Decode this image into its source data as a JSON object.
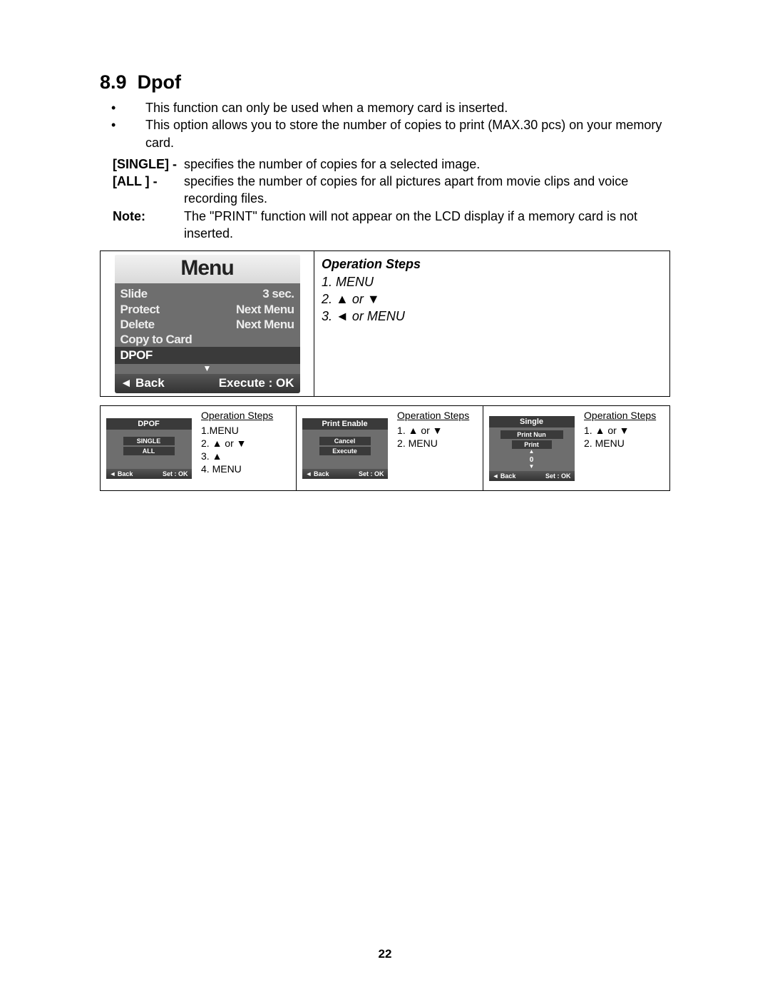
{
  "section": {
    "number": "8.9",
    "title": "Dpof"
  },
  "bullets": [
    "This function can only be used when a memory card is inserted.",
    "This option allows you to store the number of copies to print (MAX.30 pcs) on your memory card."
  ],
  "defs": [
    {
      "label": "[SINGLE] -",
      "text": "specifies the number of copies for a selected image."
    },
    {
      "label": "[ALL ]   -",
      "text": "specifies the number of copies for all pictures apart from movie clips and voice recording files."
    },
    {
      "label": "Note:",
      "text": "The \"PRINT\" function will not appear on the LCD display if a memory card is not inserted."
    }
  ],
  "main_menu": {
    "header": "Menu",
    "rows": [
      {
        "l": "Slide",
        "r": "3 sec."
      },
      {
        "l": "Protect",
        "r": "Next Menu"
      },
      {
        "l": "Delete",
        "r": "Next Menu"
      },
      {
        "l": "Copy to Card",
        "r": ""
      }
    ],
    "selected": "DPOF",
    "footer_back": "◄ Back",
    "footer_exec": "Execute : OK"
  },
  "main_ops": {
    "title": "Operation Steps",
    "lines": [
      "1. MENU",
      "2. ▲ or ▼",
      "3. ◄ or MENU"
    ]
  },
  "panels": [
    {
      "screen": {
        "header": "DPOF",
        "items": [
          "SINGLE",
          "ALL"
        ],
        "footer_l": "◄ Back",
        "footer_r": "Set : OK"
      },
      "ops": {
        "t": "Operation Steps",
        "lines": [
          "1.MENU",
          "2. ▲ or ▼",
          "3. ▲",
          "4. MENU"
        ]
      }
    },
    {
      "screen": {
        "header": "Print Enable",
        "items": [
          "Cancel",
          "Execute"
        ],
        "footer_l": "◄ Back",
        "footer_r": "Set : OK"
      },
      "ops": {
        "t": "Operation Steps",
        "lines": [
          "1. ▲ or ▼",
          "2. MENU"
        ]
      }
    },
    {
      "screen": {
        "header": "Single",
        "items_special": {
          "top": "Print Nun",
          "mid": "Print",
          "val": "0"
        },
        "footer_l": "◄ Back",
        "footer_r": "Set : OK"
      },
      "ops": {
        "t": "Operation Steps",
        "lines": [
          "1. ▲ or ▼",
          "2. MENU"
        ]
      }
    }
  ],
  "page_number": "22",
  "colors": {
    "gray_body": "#6e6e6e",
    "dark_sel": "#3a3a3a",
    "footer_grad_top": "#555555",
    "footer_grad_bot": "#333333",
    "header_grad_top": "#f2f2f2",
    "header_grad_bot": "#d9d9d9"
  }
}
